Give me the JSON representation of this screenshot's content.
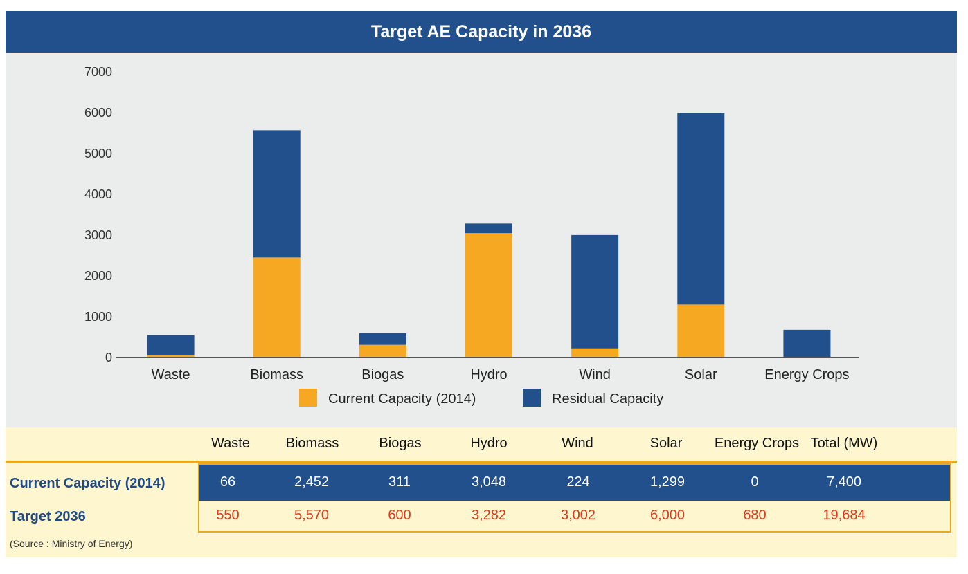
{
  "title": "Target AE Capacity in 2036",
  "chart_data": {
    "type": "bar",
    "stacked": true,
    "title": "Target AE Capacity in 2036",
    "categories": [
      "Waste",
      "Biomass",
      "Biogas",
      "Hydro",
      "Wind",
      "Solar",
      "Energy Crops"
    ],
    "series": [
      {
        "name": "Current Capacity (2014)",
        "color": "#f6a823",
        "values": [
          66,
          2452,
          311,
          3048,
          224,
          1299,
          0
        ]
      },
      {
        "name": "Residual Capacity",
        "color": "#22508c",
        "values": [
          484,
          3118,
          289,
          234,
          2778,
          4701,
          680
        ]
      }
    ],
    "ylim": [
      0,
      7000
    ],
    "yticks": [
      0,
      1000,
      2000,
      3000,
      4000,
      5000,
      6000,
      7000
    ],
    "ytick_labels": [
      "0",
      "1000",
      "2000",
      "3000",
      "4000",
      "5000",
      "6000",
      "7000"
    ],
    "xlabel": "",
    "ylabel": "",
    "legend_position": "bottom"
  },
  "table": {
    "headers": [
      "Waste",
      "Biomass",
      "Biogas",
      "Hydro",
      "Wind",
      "Solar",
      "Energy Crops",
      "Total (MW)"
    ],
    "rows": [
      {
        "label": "Current Capacity (2014)",
        "values": [
          "66",
          "2,452",
          "311",
          "3,048",
          "224",
          "1,299",
          "0",
          "7,400"
        ]
      },
      {
        "label": "Target 2036",
        "values": [
          "550",
          "5,570",
          "600",
          "3,282",
          "3,002",
          "6,000",
          "680",
          "19,684"
        ]
      }
    ]
  },
  "source": "(Source : Ministry of Energy)",
  "colors": {
    "header_blue": "#22508c",
    "bar_orange": "#f6a823",
    "target_red": "#e03a1a",
    "table_bg": "#fdf6cf",
    "chart_bg": "#ebecec"
  }
}
